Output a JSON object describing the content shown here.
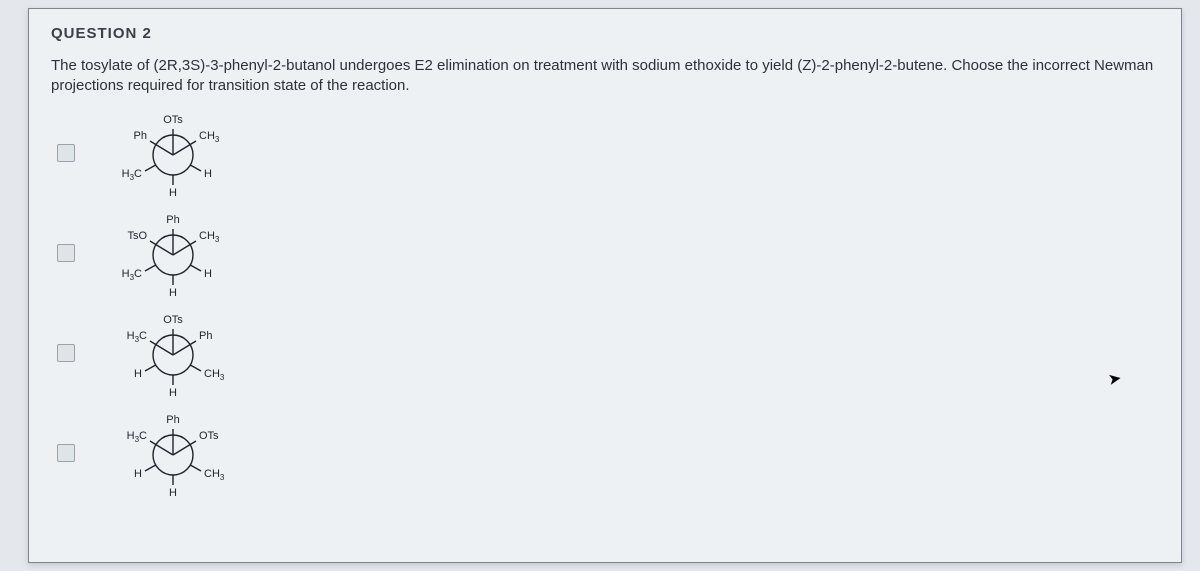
{
  "question_label": "QUESTION 2",
  "prompt": "The tosylate of (2R,3S)-3-phenyl-2-butanol undergoes E2 elimination on treatment with sodium ethoxide to yield (Z)-2-phenyl-2-butene.  Choose the incorrect Newman projections required for transition state of the reaction.",
  "options": [
    {
      "front": {
        "top": "OTs",
        "left": "Ph",
        "right": "CH3"
      },
      "back": {
        "left": "H3C",
        "right": "H",
        "bottom": "H"
      }
    },
    {
      "front": {
        "top": "Ph",
        "left": "TsO",
        "right": "CH3"
      },
      "back": {
        "left": "H3C",
        "right": "H",
        "bottom": "H"
      }
    },
    {
      "front": {
        "top": "OTs",
        "left": "H3C",
        "right": "Ph"
      },
      "back": {
        "left": "H",
        "right": "CH3",
        "bottom": "H"
      }
    },
    {
      "front": {
        "top": "Ph",
        "left": "H3C",
        "right": "OTs"
      },
      "back": {
        "left": "H",
        "right": "CH3",
        "bottom": "H"
      }
    }
  ],
  "colors": {
    "page_bg": "#e4e8ec",
    "paper_bg": "#eef1f4",
    "border": "#7d868e",
    "text": "#2b3238",
    "stroke": "#1e2428"
  }
}
